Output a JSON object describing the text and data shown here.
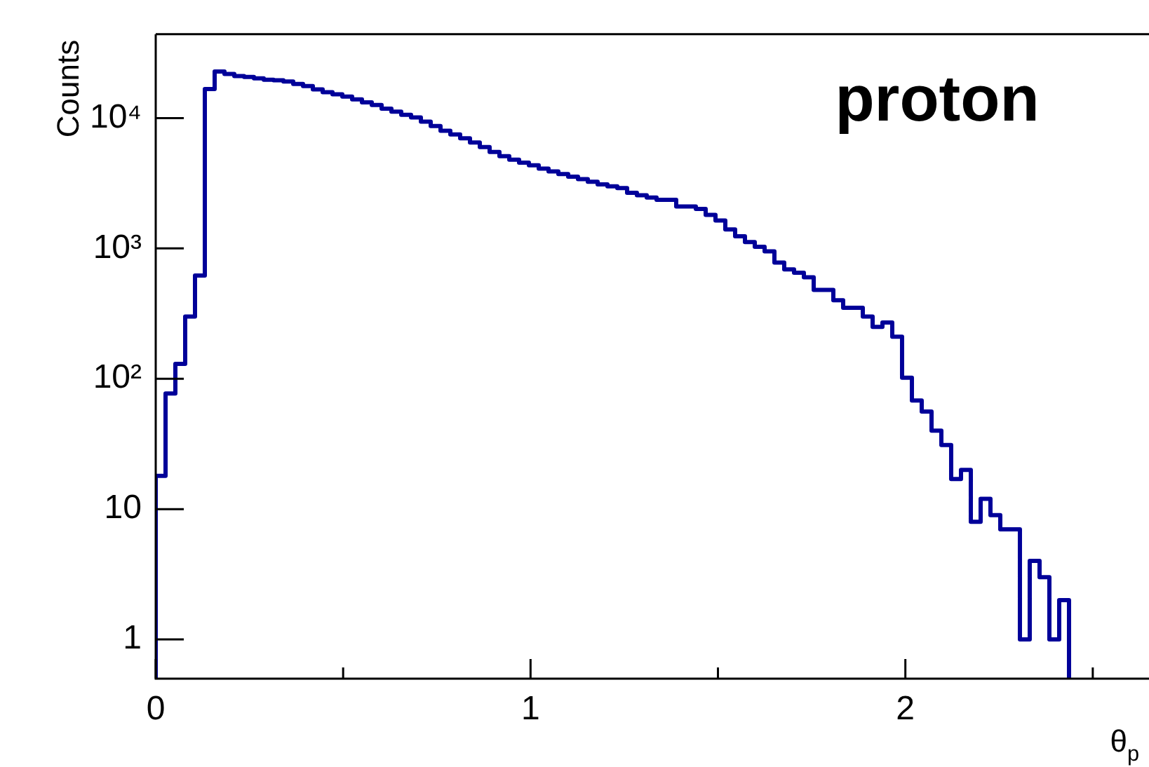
{
  "chart_data": {
    "type": "histogram",
    "title": "proton",
    "xlabel": "θ$_{p}$",
    "ylabel": "Counts",
    "bins": [
      0,
      0.0262,
      0.0524,
      0.0786,
      0.1048,
      0.131,
      0.1572,
      0.1834,
      0.2096,
      0.2358,
      0.262,
      0.2882,
      0.3144,
      0.3406,
      0.3668,
      0.393,
      0.4192,
      0.4454,
      0.4716,
      0.4978,
      0.524,
      0.5502,
      0.5764,
      0.6026,
      0.6288,
      0.655,
      0.6812,
      0.7074,
      0.7336,
      0.7598,
      0.786,
      0.8122,
      0.8384,
      0.8646,
      0.8908,
      0.917,
      0.9432,
      0.9694,
      0.9956,
      1.0218,
      1.048,
      1.0742,
      1.1004,
      1.1266,
      1.1528,
      1.179,
      1.2052,
      1.2314,
      1.2576,
      1.2838,
      1.31,
      1.3362,
      1.3624,
      1.3886,
      1.4148,
      1.441,
      1.4672,
      1.4934,
      1.5196,
      1.5458,
      1.572,
      1.5982,
      1.6244,
      1.6506,
      1.6768,
      1.703,
      1.7292,
      1.7554,
      1.7816,
      1.8078,
      1.834,
      1.8602,
      1.8864,
      1.9126,
      1.9388,
      1.965,
      1.9912,
      2.0174,
      2.0436,
      2.0698,
      2.096,
      2.1222,
      2.1484,
      2.1746,
      2.2008,
      2.227,
      2.2532,
      2.2794,
      2.3056,
      2.3318,
      2.358,
      2.3842,
      2.4104,
      2.4366
    ],
    "values": [
      18,
      77,
      130,
      300,
      620,
      16700,
      22800,
      21800,
      21000,
      20700,
      20200,
      19700,
      19500,
      19100,
      18300,
      17600,
      16600,
      15800,
      15200,
      14600,
      13900,
      13200,
      12600,
      11800,
      11200,
      10600,
      10100,
      9400,
      8700,
      8000,
      7500,
      7000,
      6500,
      6000,
      5500,
      5100,
      4800,
      4550,
      4350,
      4100,
      3900,
      3720,
      3550,
      3400,
      3250,
      3100,
      3000,
      2900,
      2670,
      2560,
      2460,
      2360,
      2360,
      2100,
      2100,
      2010,
      1810,
      1640,
      1400,
      1240,
      1120,
      1030,
      950,
      780,
      690,
      650,
      600,
      480,
      480,
      400,
      350,
      350,
      300,
      250,
      270,
      210,
      102,
      68,
      56,
      40,
      31,
      17,
      20,
      8,
      12,
      9,
      7,
      7,
      1,
      4,
      3,
      1,
      2
    ],
    "color": "#000099",
    "xlim": [
      0,
      2.65
    ],
    "xticks": [
      0,
      {
        "value": 0.5,
        "label": null
      },
      1,
      {
        "value": 1.5,
        "label": null
      },
      2,
      {
        "value": 2.5,
        "label": null
      }
    ],
    "ylim": [
      0.5,
      44000
    ],
    "yticks": [
      1,
      10,
      {
        "value": 100,
        "label": "10²"
      },
      {
        "value": 1000,
        "label": "10³"
      },
      {
        "value": 10000,
        "label": "10⁴"
      }
    ],
    "log": true,
    "grid": false,
    "legend": false
  }
}
